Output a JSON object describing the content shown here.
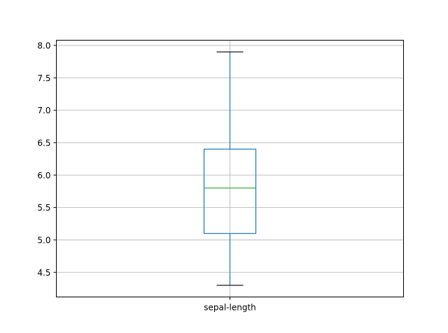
{
  "chart_data": {
    "type": "box",
    "categories": [
      "sepal-length"
    ],
    "boxes": [
      {
        "name": "sepal-length",
        "whisker_low": 4.3,
        "q1": 5.1,
        "median": 5.8,
        "q3": 6.4,
        "whisker_high": 7.9
      }
    ],
    "ylim": [
      4.12,
      8.08
    ],
    "yticks": [
      4.5,
      5.0,
      5.5,
      6.0,
      6.5,
      7.0,
      7.5,
      8.0
    ],
    "ytick_labels": [
      "4.5",
      "5.0",
      "5.5",
      "6.0",
      "6.5",
      "7.0",
      "7.5",
      "8.0"
    ],
    "grid": true,
    "title": "",
    "xlabel": "",
    "ylabel": "",
    "colors": {
      "box": "#1f77b4",
      "median": "#2ca02c",
      "whisker_cap": "#000000",
      "grid": "#b0b0b0"
    }
  }
}
